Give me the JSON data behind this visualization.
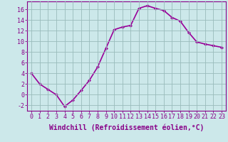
{
  "x": [
    0,
    1,
    2,
    3,
    4,
    5,
    6,
    7,
    8,
    9,
    10,
    11,
    12,
    13,
    14,
    15,
    16,
    17,
    18,
    19,
    20,
    21,
    22,
    23
  ],
  "y": [
    4,
    2,
    1,
    0,
    -2.2,
    -1,
    0.8,
    2.7,
    5.2,
    8.7,
    12.2,
    12.7,
    13.0,
    16.2,
    16.7,
    16.2,
    15.8,
    14.5,
    13.8,
    11.7,
    9.9,
    9.5,
    9.2,
    8.9
  ],
  "line_color": "#990099",
  "marker": "D",
  "marker_size": 2,
  "background_color": "#cce8ea",
  "grid_color": "#99bbbb",
  "xlabel": "Windchill (Refroidissement éolien,°C)",
  "xlabel_fontsize": 7,
  "ylim": [
    -3,
    17.5
  ],
  "yticks": [
    -2,
    0,
    2,
    4,
    6,
    8,
    10,
    12,
    14,
    16
  ],
  "xticks": [
    0,
    1,
    2,
    3,
    4,
    5,
    6,
    7,
    8,
    9,
    10,
    11,
    12,
    13,
    14,
    15,
    16,
    17,
    18,
    19,
    20,
    21,
    22,
    23
  ],
  "xtick_labels": [
    "0",
    "1",
    "2",
    "3",
    "4",
    "5",
    "6",
    "7",
    "8",
    "9",
    "10",
    "11",
    "12",
    "13",
    "14",
    "15",
    "16",
    "17",
    "18",
    "19",
    "20",
    "21",
    "22",
    "23"
  ],
  "tick_color": "#880088",
  "tick_fontsize": 6,
  "spine_color": "#880088",
  "linewidth": 1.2,
  "xlim": [
    -0.5,
    23.5
  ]
}
